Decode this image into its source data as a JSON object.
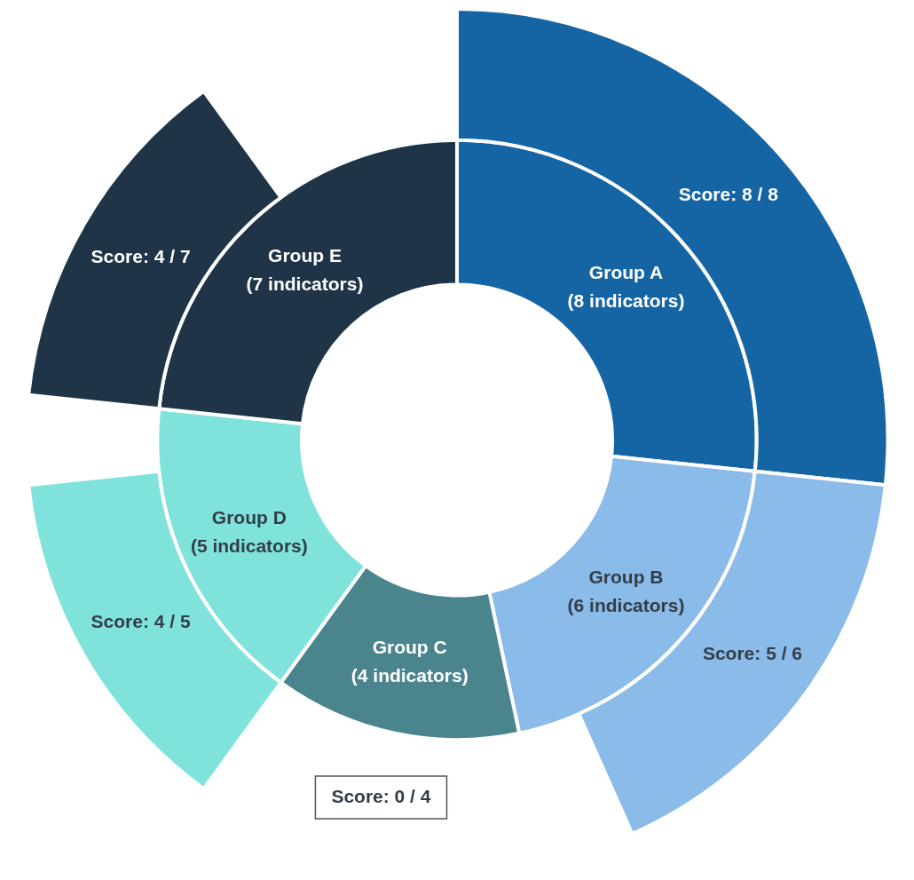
{
  "chart_data": {
    "type": "donut",
    "categories": [
      "Group A (8 indicators)",
      "Group B (6 indicators)",
      "Group C (4 indicators)",
      "Group D (5 indicators)",
      "Group E (7 indicators)"
    ],
    "colors": [
      "#1565a5",
      "#8bbbe8",
      "#4a858e",
      "#7fe3dc",
      "#1f3447"
    ],
    "series": [
      {
        "values": [
          8,
          6,
          4,
          5,
          7
        ]
      },
      {
        "values": [
          8,
          5,
          0,
          4,
          4
        ],
        "value_labels": [
          "Score: 8 / 8",
          "Score: 5 / 6",
          "Score: 0 / 4",
          "Score: 4 / 5",
          "Score: 4 / 7"
        ]
      }
    ]
  }
}
